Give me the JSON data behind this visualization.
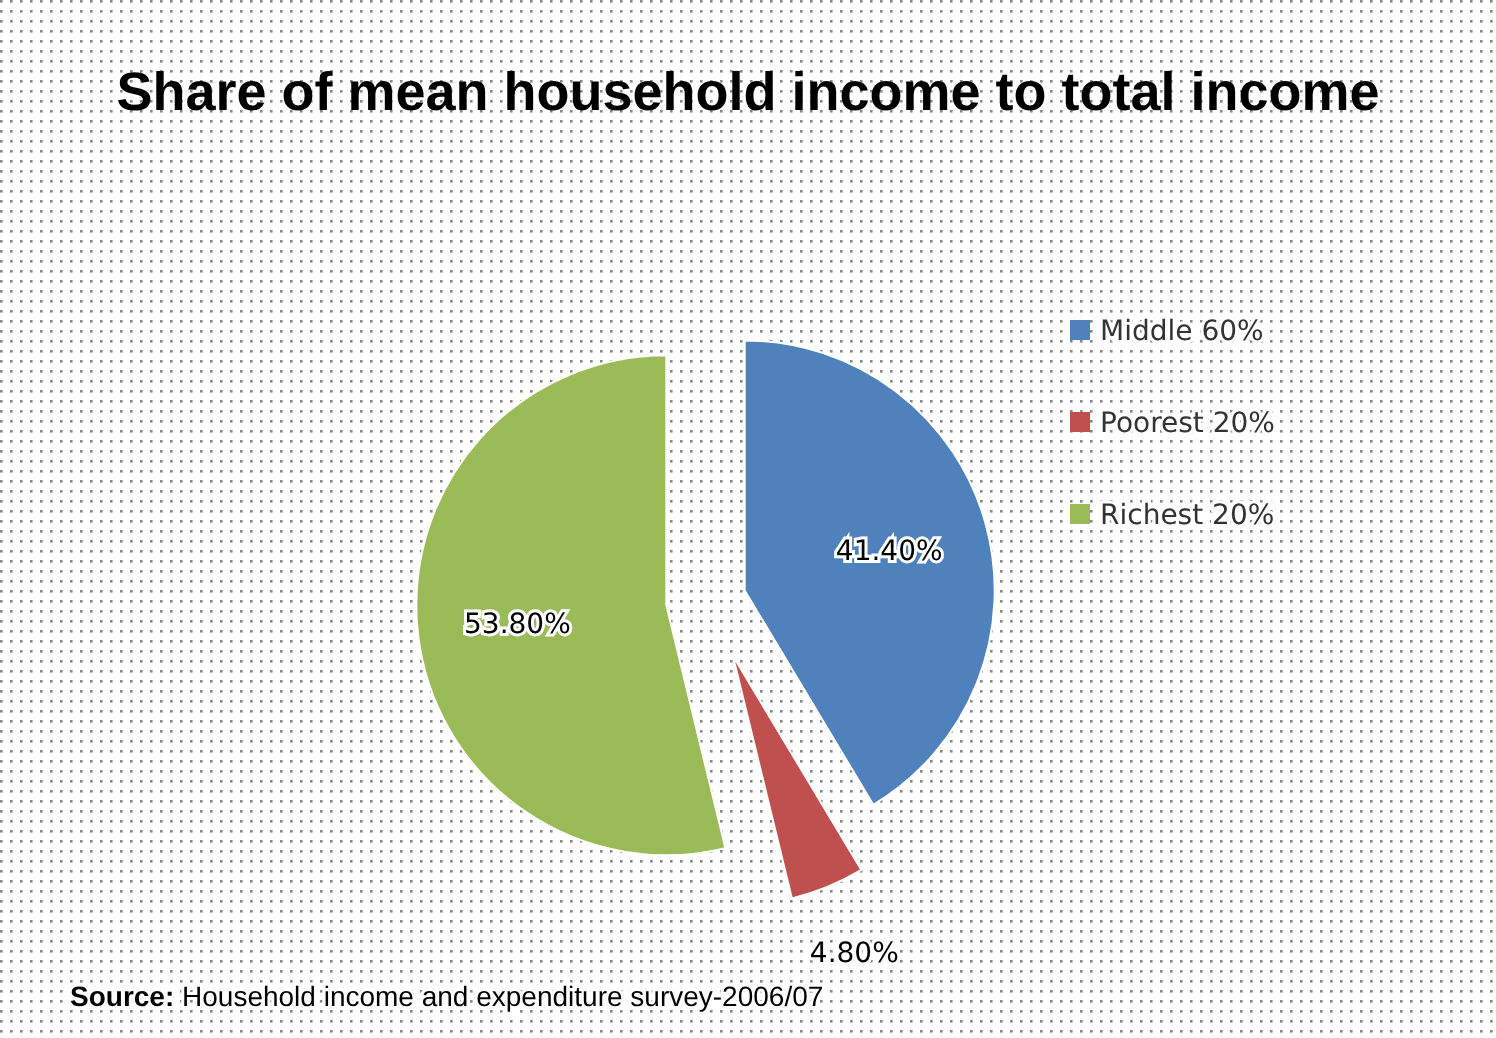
{
  "chart_data": {
    "type": "pie",
    "title": "Share of mean household income to total income",
    "categories": [
      "Middle 60%",
      "Poorest 20%",
      "Richest 20%"
    ],
    "values": [
      41.4,
      4.8,
      53.8
    ],
    "colors": [
      "#4f81bd",
      "#c0504d",
      "#9bbb59"
    ],
    "value_labels": [
      "41.40%",
      "4.80%",
      "53.80%"
    ],
    "legend": "right",
    "annotations": [
      "Source: Household income and expenditure survey-2006/07"
    ]
  }
}
